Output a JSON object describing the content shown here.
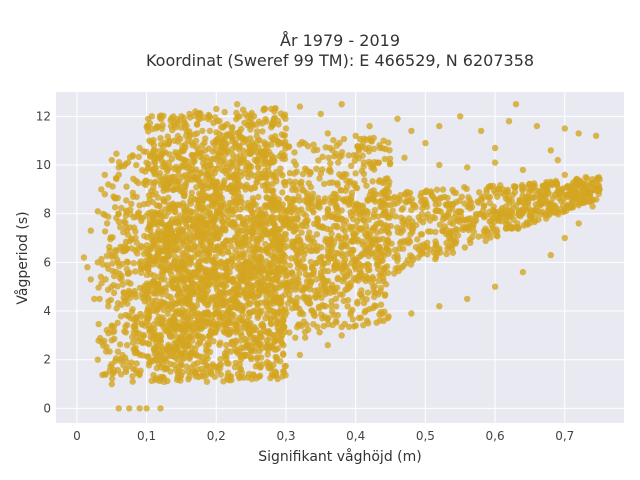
{
  "chart_data": {
    "type": "scatter",
    "title_line1": "År 1979 - 2019",
    "title_line2": "Koordinat (Sweref 99 TM): E 466529, N 6207358",
    "xlabel": "Signifikant våghöjd (m)",
    "ylabel": "Vågperiod (s)",
    "xlim": [
      -0.03,
      0.785
    ],
    "ylim": [
      -0.6,
      13.0
    ],
    "x_ticks": [
      0,
      0.1,
      0.2,
      0.3,
      0.4,
      0.5,
      0.6,
      0.7
    ],
    "x_tick_labels": [
      "0",
      "0,1",
      "0,2",
      "0,3",
      "0,4",
      "0,5",
      "0,6",
      "0,7"
    ],
    "y_ticks": [
      0,
      2,
      4,
      6,
      8,
      10,
      12
    ],
    "y_tick_labels": [
      "0",
      "2",
      "4",
      "6",
      "8",
      "10",
      "12"
    ],
    "grid": true,
    "colors": {
      "marker": "#d4a520",
      "plot_bg": "#e9e9f2",
      "grid": "#ffffff"
    },
    "series": [
      {
        "points": [
          [
            0.06,
            0.0
          ],
          [
            0.075,
            0.0
          ],
          [
            0.09,
            0.0
          ],
          [
            0.1,
            0.0
          ],
          [
            0.12,
            0.0
          ],
          [
            0.01,
            6.2
          ],
          [
            0.015,
            5.8
          ],
          [
            0.02,
            7.3
          ],
          [
            0.02,
            5.3
          ],
          [
            0.025,
            4.5
          ],
          [
            0.03,
            6.0
          ],
          [
            0.03,
            8.1
          ],
          [
            0.035,
            9.0
          ],
          [
            0.04,
            9.6
          ],
          [
            0.04,
            8.8
          ],
          [
            0.05,
            10.2
          ],
          [
            0.06,
            9.9
          ],
          [
            0.09,
            10.7
          ],
          [
            0.1,
            10.1
          ],
          [
            0.12,
            11.1
          ],
          [
            0.135,
            11.6
          ],
          [
            0.15,
            12.0
          ],
          [
            0.17,
            12.2
          ],
          [
            0.19,
            12.0
          ],
          [
            0.2,
            12.3
          ],
          [
            0.23,
            12.5
          ],
          [
            0.25,
            11.9
          ],
          [
            0.27,
            12.3
          ],
          [
            0.3,
            11.5
          ],
          [
            0.32,
            12.4
          ],
          [
            0.35,
            12.1
          ],
          [
            0.38,
            12.5
          ],
          [
            0.36,
            11.3
          ],
          [
            0.42,
            11.6
          ],
          [
            0.46,
            11.9
          ],
          [
            0.52,
            11.6
          ],
          [
            0.55,
            12.0
          ],
          [
            0.58,
            11.4
          ],
          [
            0.63,
            12.5
          ],
          [
            0.62,
            11.8
          ],
          [
            0.66,
            11.6
          ],
          [
            0.7,
            11.5
          ],
          [
            0.72,
            11.3
          ],
          [
            0.745,
            11.2
          ],
          [
            0.4,
            11.2
          ],
          [
            0.44,
            11.0
          ],
          [
            0.48,
            11.4
          ],
          [
            0.5,
            10.9
          ],
          [
            0.6,
            10.7
          ],
          [
            0.68,
            10.6
          ],
          [
            0.05,
            2.8
          ],
          [
            0.05,
            3.4
          ],
          [
            0.045,
            4.2
          ],
          [
            0.03,
            2.0
          ],
          [
            0.04,
            1.4
          ],
          [
            0.05,
            1.0
          ],
          [
            0.08,
            1.1
          ],
          [
            0.12,
            1.2
          ],
          [
            0.16,
            1.2
          ],
          [
            0.22,
            1.3
          ],
          [
            0.28,
            1.4
          ],
          [
            0.26,
            1.8
          ],
          [
            0.32,
            2.2
          ],
          [
            0.36,
            2.6
          ],
          [
            0.38,
            3.0
          ],
          [
            0.4,
            3.4
          ],
          [
            0.44,
            3.6
          ],
          [
            0.48,
            3.9
          ],
          [
            0.52,
            4.2
          ],
          [
            0.56,
            4.5
          ],
          [
            0.6,
            5.0
          ],
          [
            0.64,
            5.6
          ],
          [
            0.68,
            6.3
          ],
          [
            0.7,
            7.0
          ],
          [
            0.72,
            7.6
          ],
          [
            0.74,
            8.3
          ],
          [
            0.75,
            9.0
          ],
          [
            0.75,
            9.4
          ],
          [
            0.73,
            9.5
          ],
          [
            0.7,
            9.6
          ],
          [
            0.69,
            10.2
          ],
          [
            0.64,
            9.8
          ],
          [
            0.6,
            10.1
          ],
          [
            0.56,
            9.9
          ],
          [
            0.52,
            10.0
          ],
          [
            0.47,
            10.3
          ],
          [
            0.43,
            10.1
          ],
          [
            0.39,
            10.4
          ],
          [
            0.34,
            10.6
          ],
          [
            0.3,
            10.8
          ],
          [
            0.26,
            11.0
          ],
          [
            0.22,
            11.2
          ],
          [
            0.18,
            11.4
          ],
          [
            0.14,
            11.0
          ],
          [
            0.11,
            10.6
          ],
          [
            0.08,
            10.4
          ],
          [
            0.06,
            9.6
          ],
          [
            0.045,
            9.2
          ]
        ],
        "regions": [
          {
            "x_min": 0.03,
            "x_max": 0.75,
            "y_low_at_min": 1.0,
            "y_low_at_max": 8.6,
            "y_high_at_min": 8.0,
            "y_high_at_max": 9.5
          },
          {
            "x_min": 0.05,
            "x_max": 0.45,
            "y_low_at_min": 1.0,
            "y_low_at_max": 3.6,
            "y_high_at_min": 10.5,
            "y_high_at_max": 11.2
          },
          {
            "x_min": 0.1,
            "x_max": 0.3,
            "y_low_at_min": 1.0,
            "y_low_at_max": 1.2,
            "y_high_at_min": 12.0,
            "y_high_at_max": 12.4
          }
        ]
      }
    ]
  }
}
